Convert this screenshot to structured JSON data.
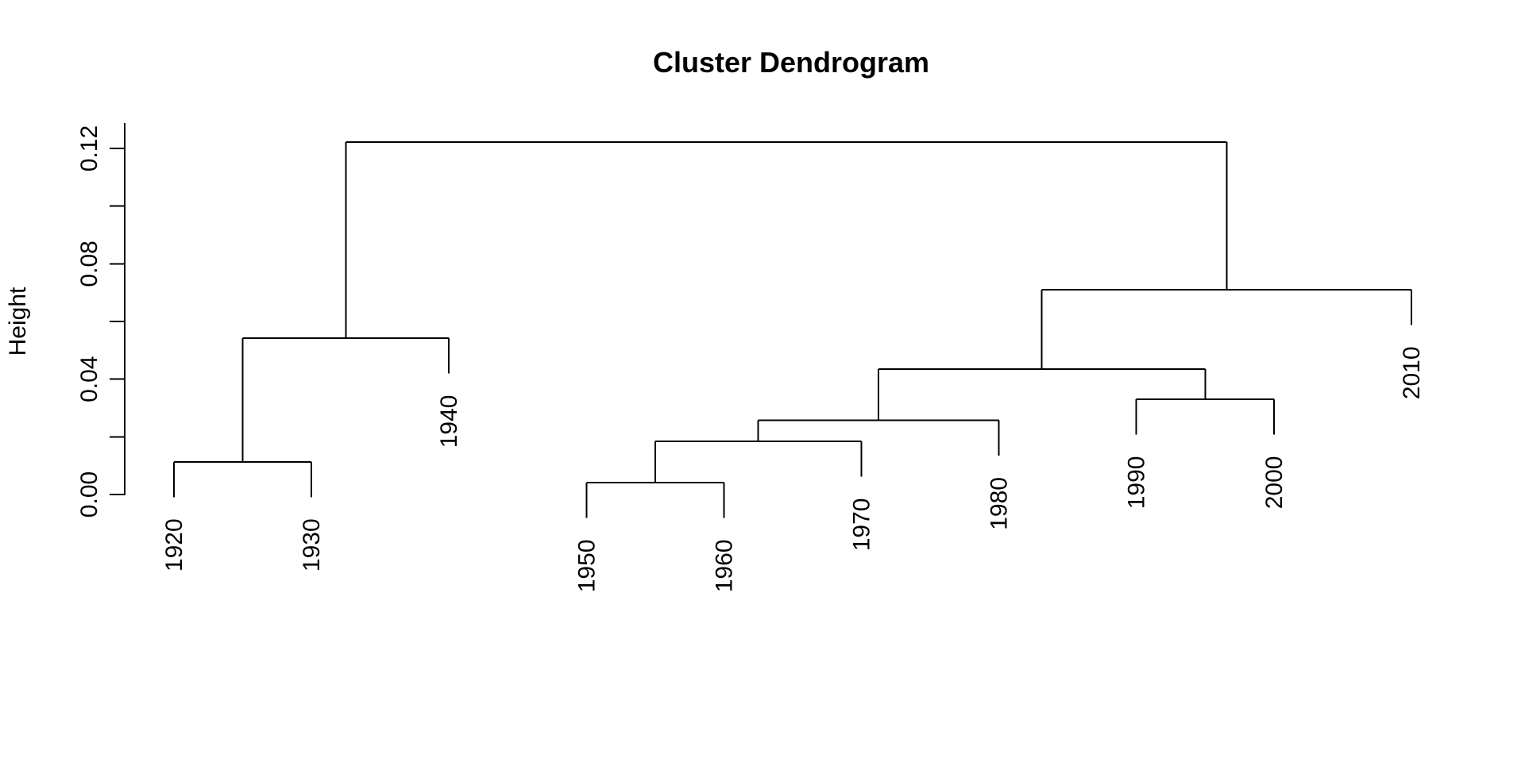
{
  "title": "Cluster Dendrogram",
  "y_axis": {
    "label": "Height",
    "ticks": [
      0,
      0.02,
      0.04,
      0.06,
      0.08,
      0.1,
      0.12
    ],
    "labeled_ticks": [
      {
        "value": 0,
        "label": "0.00"
      },
      {
        "value": 0.04,
        "label": "0.04"
      },
      {
        "value": 0.08,
        "label": "0.08"
      },
      {
        "value": 0.12,
        "label": "0.12"
      }
    ]
  },
  "chart_data": {
    "type": "dendrogram",
    "title": "Cluster Dendrogram",
    "ylabel": "Height",
    "ylim": [
      0,
      0.12
    ],
    "grid": false,
    "legend": false,
    "line_color": "#000000",
    "background_color": "#ffffff",
    "hang": 0.1,
    "leaves": [
      "1920",
      "1930",
      "1940",
      "1950",
      "1960",
      "1970",
      "1980",
      "1990",
      "2000",
      "2010"
    ],
    "merges": [
      {
        "id": "M0",
        "left": "L3",
        "right": "L4",
        "height": 0.0041
      },
      {
        "id": "M1",
        "left": "L0",
        "right": "L1",
        "height": 0.0113
      },
      {
        "id": "M2",
        "left": "M0",
        "right": "L5",
        "height": 0.0184
      },
      {
        "id": "M3",
        "left": "M2",
        "right": "L6",
        "height": 0.0257
      },
      {
        "id": "M4",
        "left": "L7",
        "right": "L8",
        "height": 0.033
      },
      {
        "id": "M5",
        "left": "M3",
        "right": "M4",
        "height": 0.0435
      },
      {
        "id": "M6",
        "left": "M1",
        "right": "L2",
        "height": 0.0542
      },
      {
        "id": "M7",
        "left": "M5",
        "right": "L9",
        "height": 0.071
      },
      {
        "id": "M8",
        "left": "M6",
        "right": "M7",
        "height": 0.1222
      }
    ]
  }
}
